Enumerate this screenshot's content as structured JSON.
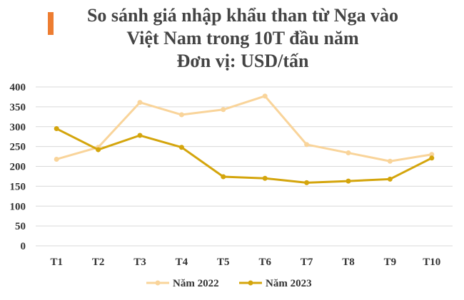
{
  "chart_data": {
    "type": "line",
    "title_lines": [
      "So sánh giá nhập khẩu than từ Nga vào",
      "Việt Nam trong 10T đầu năm",
      "Đơn vị: USD/tấn"
    ],
    "categories": [
      "T1",
      "T2",
      "T3",
      "T4",
      "T5",
      "T6",
      "T7",
      "T8",
      "T9",
      "T10"
    ],
    "series": [
      {
        "name": "Năm 2022",
        "color": "#F9D49A",
        "values": [
          218,
          248,
          361,
          330,
          343,
          377,
          255,
          234,
          213,
          230
        ]
      },
      {
        "name": "Năm 2023",
        "color": "#D4A50C",
        "values": [
          295,
          242,
          278,
          248,
          174,
          170,
          159,
          163,
          168,
          221
        ]
      }
    ],
    "y_ticks": [
      "0",
      "50",
      "100",
      "150",
      "200",
      "250",
      "300",
      "350",
      "400"
    ],
    "ylim": [
      0,
      400
    ],
    "grid": true,
    "legend_position": "bottom",
    "accent_color": "#ED7D31",
    "xlabel": "",
    "ylabel": ""
  }
}
